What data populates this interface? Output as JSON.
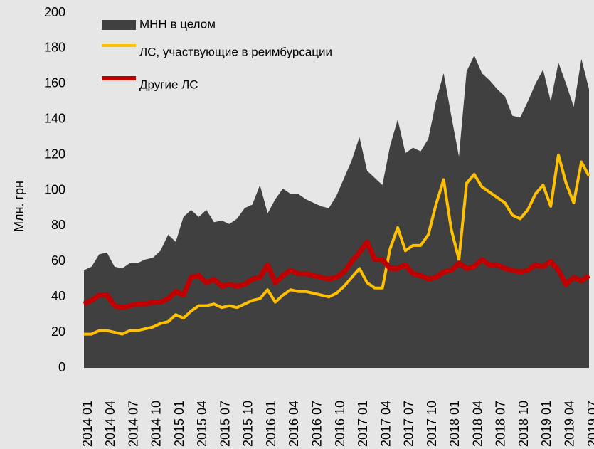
{
  "chart_data": {
    "type": "area_line",
    "y_label": "Млн. грн",
    "categories": [
      "2014 01",
      null,
      null,
      "2014 04",
      null,
      null,
      "2014 07",
      null,
      null,
      "2014 10",
      null,
      null,
      "2015 01",
      null,
      null,
      "2015 04",
      null,
      null,
      "2015 07",
      null,
      null,
      "2015 10",
      null,
      null,
      "2016 01",
      null,
      null,
      "2016 04",
      null,
      null,
      "2016 07",
      null,
      null,
      "2016 10",
      null,
      null,
      "2017 01",
      null,
      null,
      "2017 04",
      null,
      null,
      "2017 07",
      null,
      null,
      "2017 10",
      null,
      null,
      "2018 01",
      null,
      null,
      "2018 04",
      null,
      null,
      "2018 07",
      null,
      null,
      "2018 10",
      null,
      null,
      "2019 01",
      null,
      null,
      "2019 04",
      null,
      null,
      "2019 07"
    ],
    "series": [
      {
        "name": "МНН в целом",
        "kind": "area",
        "color": "#404040",
        "values": [
          55,
          57,
          64,
          65,
          57,
          56,
          59,
          59,
          61,
          62,
          66,
          75,
          71,
          85,
          89,
          85,
          89,
          82,
          83,
          81,
          84,
          90,
          92,
          103,
          87,
          95,
          101,
          98,
          98,
          95,
          93,
          91,
          90,
          97,
          107,
          117,
          130,
          111,
          107,
          103,
          125,
          140,
          121,
          124,
          122,
          129,
          150,
          166,
          142,
          119,
          167,
          176,
          166,
          162,
          157,
          153,
          142,
          141,
          150,
          160,
          168,
          150,
          172,
          160,
          147,
          174,
          157
        ]
      },
      {
        "name": "ЛС, участвующие в реимбурсации",
        "kind": "line",
        "color": "#ffc000",
        "values": [
          19,
          19,
          21,
          21,
          20,
          19,
          21,
          21,
          22,
          23,
          25,
          26,
          30,
          28,
          32,
          35,
          35,
          36,
          34,
          35,
          34,
          36,
          38,
          39,
          44,
          37,
          41,
          44,
          43,
          43,
          42,
          41,
          40,
          42,
          46,
          51,
          56,
          48,
          45,
          45,
          67,
          79,
          66,
          69,
          69,
          75,
          92,
          106,
          78,
          61,
          104,
          109,
          102,
          99,
          96,
          93,
          86,
          84,
          89,
          98,
          103,
          91,
          120,
          104,
          93,
          116,
          108
        ]
      },
      {
        "name": "Другие ЛС",
        "kind": "line",
        "color": "#c00000",
        "values": [
          36,
          38,
          41,
          41,
          35,
          34,
          35,
          36,
          36,
          37,
          37,
          39,
          43,
          41,
          51,
          52,
          48,
          50,
          46,
          47,
          46,
          47,
          50,
          51,
          58,
          48,
          52,
          55,
          53,
          53,
          52,
          51,
          50,
          51,
          54,
          60,
          65,
          71,
          61,
          61,
          56,
          56,
          58,
          53,
          52,
          50,
          51,
          54,
          55,
          59,
          56,
          57,
          61,
          58,
          58,
          56,
          55,
          54,
          55,
          58,
          57,
          60,
          55,
          47,
          51,
          49,
          52
        ]
      }
    ],
    "ylim": [
      0,
      200
    ],
    "yticks": [
      0,
      20,
      40,
      60,
      80,
      100,
      120,
      140,
      160,
      180,
      200
    ]
  }
}
